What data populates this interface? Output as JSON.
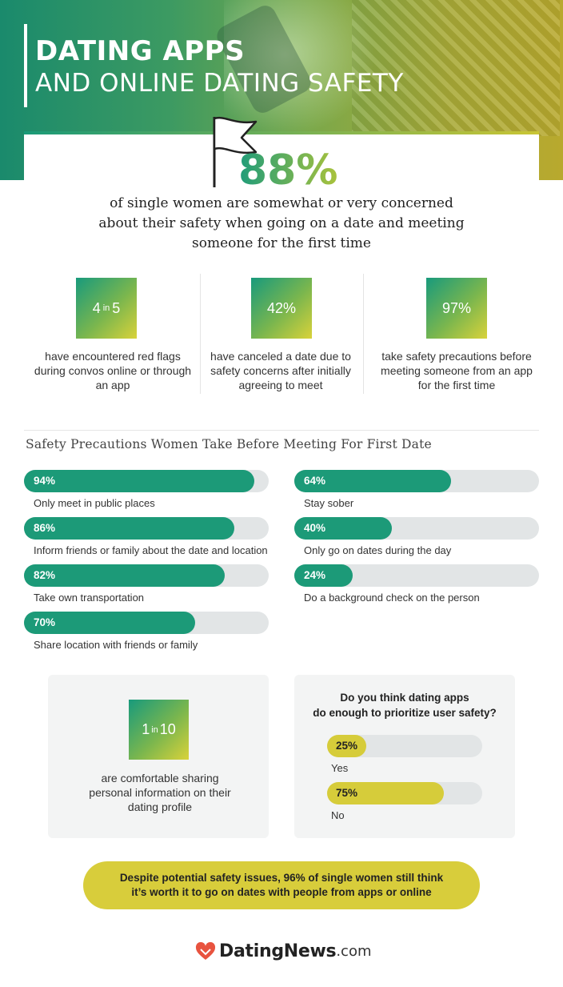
{
  "header": {
    "title_line1": "DATING APPS",
    "title_line2": "AND ONLINE DATING SAFETY"
  },
  "headline": {
    "value": "88%",
    "description": "of single women are somewhat or very concerned about their safety when going on a date and meeting someone for the first time"
  },
  "stats": [
    {
      "big": "4",
      "small": "in",
      "big2": "5",
      "text": "have encountered red flags during convos online or through an app"
    },
    {
      "big": "42%",
      "small": "",
      "big2": "",
      "text": "have canceled a date due to safety concerns after initially agreeing to meet"
    },
    {
      "big": "97%",
      "small": "",
      "big2": "",
      "text": "take safety precautions before meeting someone from an app for the first time"
    }
  ],
  "precautions_title": "Safety Precautions Women Take Before Meeting For First Date",
  "chart_data": [
    {
      "type": "bar",
      "title": "Safety Precautions Women Take Before Meeting For First Date",
      "categories": [
        "Only meet in public places",
        "Inform friends or family about the date and location",
        "Take own transportation",
        "Share location with friends or family",
        "Stay sober",
        "Only go on dates during the day",
        "Do a background check on the person"
      ],
      "values": [
        94,
        86,
        82,
        70,
        64,
        40,
        24
      ],
      "labels": [
        "94%",
        "86%",
        "82%",
        "70%",
        "64%",
        "40%",
        "24%"
      ],
      "ylim": [
        0,
        100
      ],
      "color": "#1c9a78"
    },
    {
      "type": "bar",
      "title": "Do you think dating apps do enough to prioritize user safety?",
      "categories": [
        "Yes",
        "No"
      ],
      "values": [
        25,
        75
      ],
      "labels": [
        "25%",
        "75%"
      ],
      "ylim": [
        0,
        100
      ],
      "color": "#d6cc3a"
    }
  ],
  "comfort": {
    "big": "1",
    "small": "in",
    "big2": "10",
    "text": "are comfortable sharing personal information on their dating profile"
  },
  "poll": {
    "question_line1": "Do you think dating apps",
    "question_line2": "do enough to prioritize user safety?"
  },
  "footer_pill": {
    "line1": "Despite potential safety issues, 96% of single women still think",
    "line2": "it’s worth it to go on dates with people from apps or online"
  },
  "logo": {
    "name": "DatingNews",
    "domain": ".com",
    "icon": "heart-icon"
  },
  "colors": {
    "green": "#1c9a78",
    "yellow": "#d6cc3a",
    "track": "#e2e5e6"
  }
}
